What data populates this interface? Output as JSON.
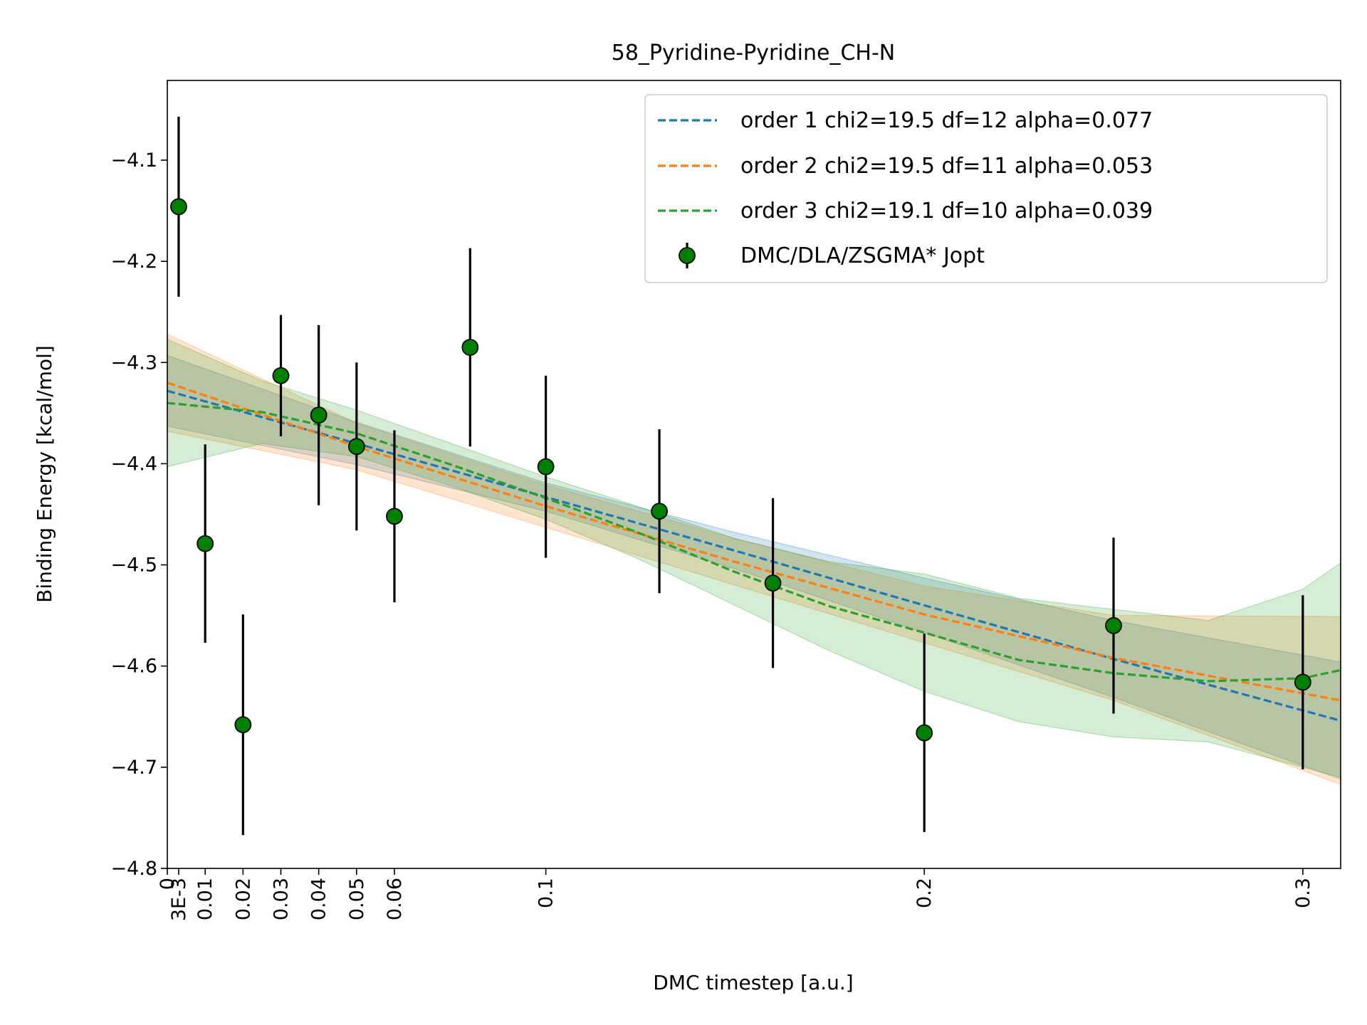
{
  "chart_data": {
    "type": "scatter",
    "title": "58_Pyridine-Pyridine_CH-N",
    "xlabel": "DMC timestep [a.u.]",
    "ylabel": "Binding Energy [kcal/mol]",
    "xlim": [
      0,
      0.31
    ],
    "ylim": [
      -4.8,
      -4.02
    ],
    "grid": false,
    "legend_position": "top-right",
    "x_ticks": [
      {
        "value": 0,
        "label": "0"
      },
      {
        "value": 0.003,
        "label": "3E-3"
      },
      {
        "value": 0.01,
        "label": "0.01"
      },
      {
        "value": 0.02,
        "label": "0.02"
      },
      {
        "value": 0.03,
        "label": "0.03"
      },
      {
        "value": 0.04,
        "label": "0.04"
      },
      {
        "value": 0.05,
        "label": "0.05"
      },
      {
        "value": 0.06,
        "label": "0.06"
      },
      {
        "value": 0.1,
        "label": "0.1"
      },
      {
        "value": 0.2,
        "label": "0.2"
      },
      {
        "value": 0.3,
        "label": "0.3"
      }
    ],
    "y_ticks": [
      {
        "value": -4.1,
        "label": "−4.1"
      },
      {
        "value": -4.2,
        "label": "−4.2"
      },
      {
        "value": -4.3,
        "label": "−4.3"
      },
      {
        "value": -4.4,
        "label": "−4.4"
      },
      {
        "value": -4.5,
        "label": "−4.5"
      },
      {
        "value": -4.6,
        "label": "−4.6"
      },
      {
        "value": -4.7,
        "label": "−4.7"
      },
      {
        "value": -4.8,
        "label": "−4.8"
      }
    ],
    "points": {
      "name": "DMC/DLA/ZSGMA* Jopt",
      "color": "#008000",
      "x": [
        0.003,
        0.01,
        0.02,
        0.03,
        0.04,
        0.05,
        0.06,
        0.08,
        0.1,
        0.13,
        0.16,
        0.2,
        0.25,
        0.3
      ],
      "y": [
        -4.146,
        -4.479,
        -4.658,
        -4.313,
        -4.352,
        -4.383,
        -4.452,
        -4.285,
        -4.403,
        -4.447,
        -4.518,
        -4.666,
        -4.56,
        -4.616
      ],
      "err": [
        0.089,
        0.098,
        0.109,
        0.06,
        0.089,
        0.083,
        0.085,
        0.098,
        0.09,
        0.081,
        0.084,
        0.098,
        0.087,
        0.086
      ]
    },
    "series": [
      {
        "name": "order 1 chi2=19.5 df=12 alpha=0.077",
        "color": "#1f77b4",
        "x": [
          0,
          0.05,
          0.1,
          0.15,
          0.2,
          0.25,
          0.31
        ],
        "y": [
          -4.328,
          -4.38,
          -4.433,
          -4.486,
          -4.54,
          -4.593,
          -4.654
        ],
        "lower": [
          -4.363,
          -4.401,
          -4.447,
          -4.504,
          -4.567,
          -4.631,
          -4.712
        ],
        "upper": [
          -4.293,
          -4.359,
          -4.419,
          -4.468,
          -4.513,
          -4.555,
          -4.596
        ]
      },
      {
        "name": "order 2 chi2=19.5 df=11 alpha=0.053",
        "color": "#ff7f0e",
        "x": [
          0,
          0.05,
          0.1,
          0.15,
          0.2,
          0.25,
          0.31
        ],
        "y": [
          -4.32,
          -4.383,
          -4.442,
          -4.497,
          -4.549,
          -4.592,
          -4.634
        ],
        "lower": [
          -4.368,
          -4.406,
          -4.463,
          -4.52,
          -4.577,
          -4.634,
          -4.717
        ],
        "upper": [
          -4.272,
          -4.36,
          -4.421,
          -4.474,
          -4.521,
          -4.55,
          -4.551
        ]
      },
      {
        "name": "order 3 chi2=19.1 df=10 alpha=0.039",
        "color": "#2ca02c",
        "x": [
          0,
          0.025,
          0.05,
          0.075,
          0.1,
          0.125,
          0.15,
          0.175,
          0.2,
          0.225,
          0.25,
          0.275,
          0.3,
          0.31
        ],
        "y": [
          -4.34,
          -4.349,
          -4.37,
          -4.401,
          -4.434,
          -4.469,
          -4.507,
          -4.541,
          -4.567,
          -4.594,
          -4.607,
          -4.615,
          -4.612,
          -4.604
        ],
        "lower": [
          -4.403,
          -4.38,
          -4.393,
          -4.422,
          -4.455,
          -4.495,
          -4.54,
          -4.585,
          -4.625,
          -4.655,
          -4.67,
          -4.675,
          -4.7,
          -4.71
        ],
        "upper": [
          -4.277,
          -4.318,
          -4.347,
          -4.38,
          -4.413,
          -4.443,
          -4.474,
          -4.497,
          -4.509,
          -4.533,
          -4.544,
          -4.555,
          -4.524,
          -4.498
        ]
      }
    ]
  }
}
